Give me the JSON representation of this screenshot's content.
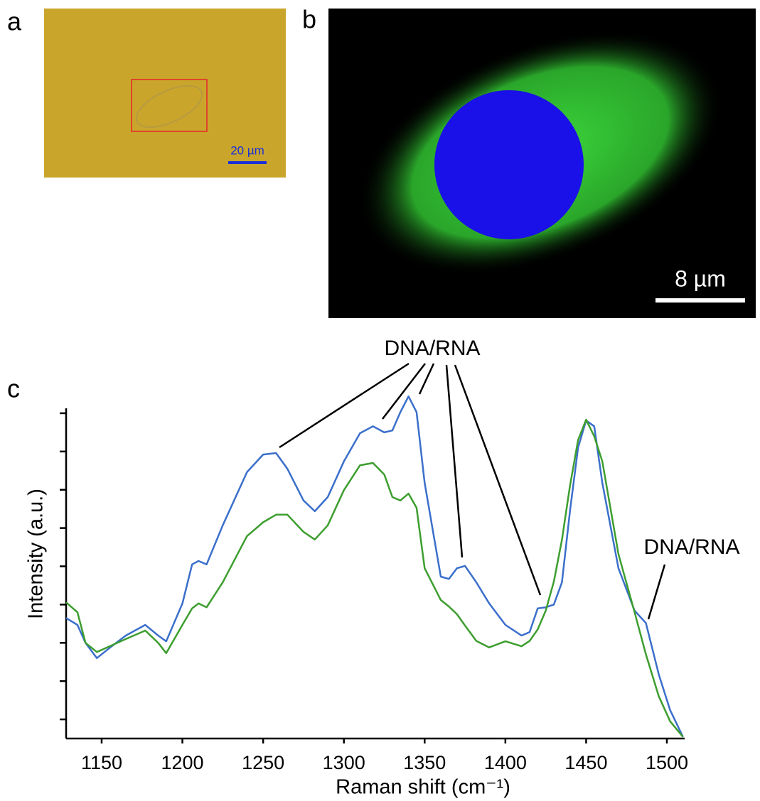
{
  "figure": {
    "panel_labels": [
      "a",
      "b",
      "c"
    ],
    "scale_bar_a": "20 µm",
    "scale_bar_b": "8 µm"
  },
  "chart_data": {
    "type": "line",
    "xlabel": "Raman shift (cm⁻¹)",
    "ylabel": "Intensity (a.u.)",
    "annotations": [
      "DNA/RNA",
      "DNA/RNA"
    ],
    "xlim": [
      1128,
      1511
    ],
    "xticks": [
      1150,
      1200,
      1250,
      1300,
      1350,
      1400,
      1450,
      1500
    ],
    "ylim": [
      0,
      9
    ],
    "yticks": [
      0.5,
      1.5,
      2.5,
      3.5,
      4.5,
      5.5,
      6.5,
      7.5,
      8.5
    ],
    "x": [
      1128,
      1135,
      1140,
      1147,
      1155,
      1165,
      1177,
      1185,
      1190,
      1200,
      1206,
      1210,
      1215,
      1225,
      1240,
      1250,
      1258,
      1265,
      1275,
      1282,
      1290,
      1300,
      1310,
      1318,
      1325,
      1330,
      1335,
      1340,
      1345,
      1350,
      1360,
      1365,
      1370,
      1375,
      1382,
      1390,
      1400,
      1410,
      1415,
      1420,
      1425,
      1430,
      1435,
      1440,
      1445,
      1450,
      1455,
      1460,
      1470,
      1480,
      1487,
      1495,
      1502,
      1510
    ],
    "series": [
      {
        "color": "#3b6fcb",
        "values": [
          3.15,
          2.97,
          2.5,
          2.1,
          2.37,
          2.69,
          2.97,
          2.69,
          2.54,
          3.53,
          4.55,
          4.64,
          4.55,
          5.57,
          6.96,
          7.42,
          7.46,
          7.05,
          6.22,
          5.94,
          6.31,
          7.24,
          7.98,
          8.16,
          8.0,
          8.05,
          8.53,
          8.94,
          8.53,
          6.68,
          4.23,
          4.17,
          4.45,
          4.51,
          4.08,
          3.53,
          2.97,
          2.69,
          2.78,
          3.4,
          3.43,
          3.5,
          4.08,
          5.94,
          7.6,
          8.31,
          8.16,
          6.68,
          4.45,
          3.34,
          3.02,
          1.67,
          0.74,
          0.04
        ]
      },
      {
        "color": "#3d9e2f",
        "values": [
          3.56,
          3.3,
          2.5,
          2.26,
          2.41,
          2.6,
          2.82,
          2.5,
          2.23,
          2.97,
          3.4,
          3.53,
          3.43,
          4.08,
          5.29,
          5.65,
          5.85,
          5.85,
          5.4,
          5.2,
          5.57,
          6.49,
          7.14,
          7.2,
          6.9,
          6.31,
          6.22,
          6.4,
          6.03,
          4.45,
          3.62,
          3.45,
          3.25,
          2.95,
          2.55,
          2.38,
          2.54,
          2.41,
          2.55,
          2.85,
          3.34,
          4.1,
          5.19,
          6.6,
          7.8,
          8.33,
          7.9,
          7.24,
          4.82,
          3.3,
          2.2,
          1.1,
          0.45,
          0.04
        ]
      }
    ]
  }
}
